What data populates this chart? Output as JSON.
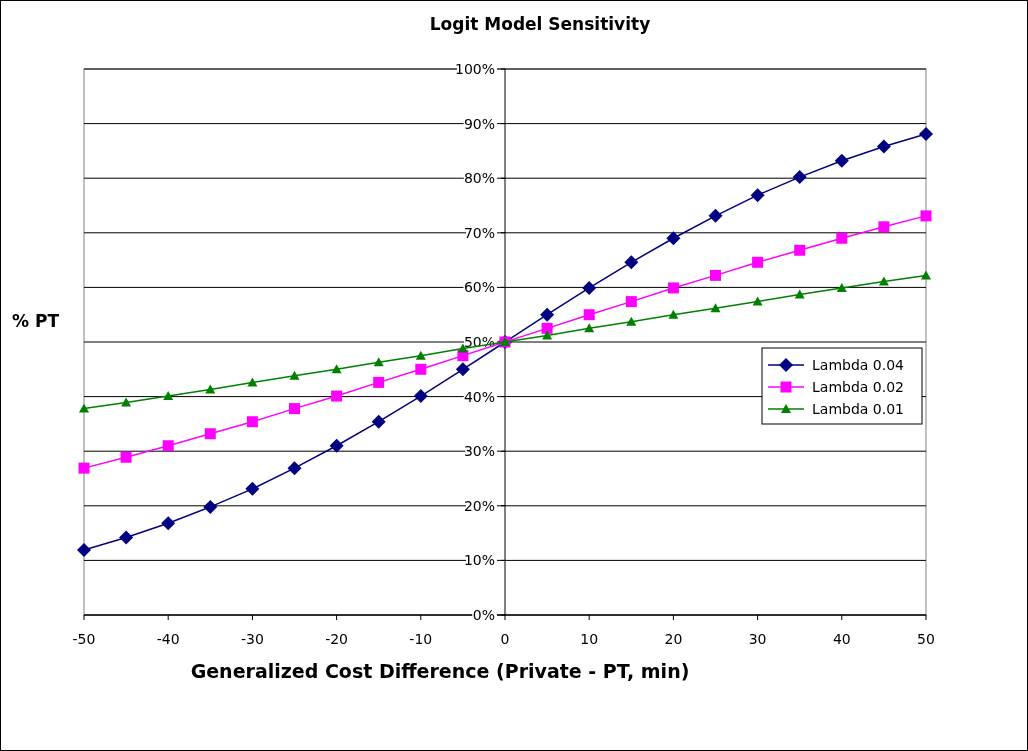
{
  "chart_data": {
    "type": "line",
    "title": "Logit Model Sensitivity",
    "xlabel": "Generalized Cost Difference (Private - PT, min)",
    "ylabel": "% PT",
    "x": [
      -50,
      -45,
      -40,
      -35,
      -30,
      -25,
      -20,
      -15,
      -10,
      -5,
      0,
      5,
      10,
      15,
      20,
      25,
      30,
      35,
      40,
      45,
      50
    ],
    "series": [
      {
        "name": "Lambda 0.04",
        "color": "#000080",
        "marker": "diamond",
        "values": [
          11.9,
          14.2,
          16.8,
          19.8,
          23.1,
          26.9,
          31.0,
          35.4,
          40.1,
          45.0,
          50.0,
          55.0,
          59.9,
          64.6,
          69.0,
          73.1,
          76.9,
          80.2,
          83.2,
          85.8,
          88.1
        ]
      },
      {
        "name": "Lambda 0.02",
        "color": "#ff00ff",
        "marker": "square",
        "values": [
          26.9,
          28.9,
          31.0,
          33.2,
          35.4,
          37.8,
          40.1,
          42.6,
          45.0,
          47.5,
          50.0,
          52.5,
          55.0,
          57.4,
          59.9,
          62.2,
          64.6,
          66.8,
          69.0,
          71.1,
          73.1
        ]
      },
      {
        "name": "Lambda 0.01",
        "color": "#008000",
        "marker": "triangle",
        "values": [
          37.8,
          38.9,
          40.1,
          41.3,
          42.6,
          43.8,
          45.0,
          46.3,
          47.5,
          48.8,
          50.0,
          51.2,
          52.5,
          53.7,
          55.0,
          56.2,
          57.4,
          58.7,
          59.9,
          61.1,
          62.2
        ]
      }
    ],
    "xlim": [
      -50,
      50
    ],
    "xticks": [
      -50,
      -40,
      -30,
      -20,
      -10,
      0,
      10,
      20,
      30,
      40,
      50
    ],
    "ylim": [
      0,
      100
    ],
    "yticks": [
      {
        "value": 0,
        "label": "0%"
      },
      {
        "value": 10,
        "label": "10%"
      },
      {
        "value": 20,
        "label": "20%"
      },
      {
        "value": 30,
        "label": "30%"
      },
      {
        "value": 40,
        "label": "40%"
      },
      {
        "value": 50,
        "label": "50%"
      },
      {
        "value": 60,
        "label": "60%"
      },
      {
        "value": 70,
        "label": "70%"
      },
      {
        "value": 80,
        "label": "80%"
      },
      {
        "value": 90,
        "label": "90%"
      },
      {
        "value": 100,
        "label": "100%"
      }
    ],
    "grid": "y",
    "legend": "right",
    "line_style": "solid"
  }
}
